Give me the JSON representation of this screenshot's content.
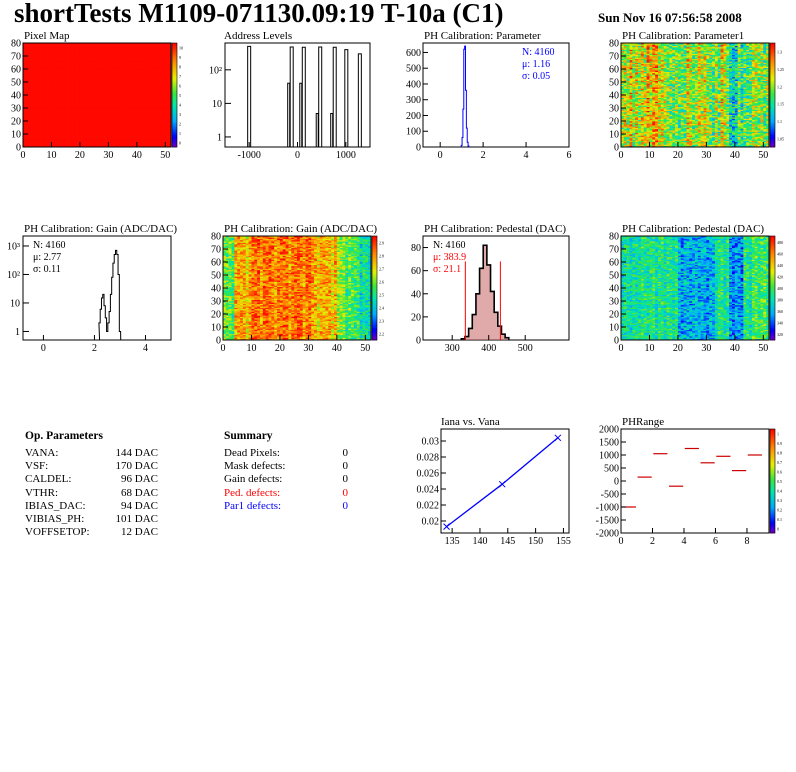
{
  "header": {
    "title": "shortTests M1109-071130.09:19 T-10a (C1)",
    "date": "Sun Nov 16 07:56:58 2008"
  },
  "colors": {
    "stat_text": "#0000ff",
    "pedestal_stat_text": "#ff0000",
    "histogram_line": "#000000",
    "fit_line": "#ff0000",
    "pedestal_fill": "#c86464",
    "iana_fit": "#0000ff",
    "phrange_marks": "#cc0000"
  },
  "panels": {
    "pixel_map": {
      "title": "Pixel Map"
    },
    "address_levels": {
      "title": "Address Levels"
    },
    "ph_param": {
      "title": "PH Calibration: Parameter"
    },
    "ph_param1": {
      "title": "PH Calibration: Parameter1"
    },
    "gain_hist": {
      "title": "PH Calibration: Gain (ADC/DAC)"
    },
    "gain_map": {
      "title": "PH Calibration: Gain (ADC/DAC)"
    },
    "ped_hist": {
      "title": "PH Calibration: Pedestal (DAC)"
    },
    "ped_map": {
      "title": "PH Calibration: Pedestal (DAC)"
    },
    "iana": {
      "title": "Iana vs. Vana"
    },
    "phrange": {
      "title": "PHRange"
    }
  },
  "stats": {
    "ph_param": {
      "n": "N: 4160",
      "mu": "μ: 1.16",
      "sigma": "σ: 0.05"
    },
    "gain": {
      "n": "N: 4160",
      "mu": "μ: 2.77",
      "sigma": "σ: 0.11"
    },
    "ped": {
      "n": "N: 4160",
      "mu": "μ: 383.9",
      "sigma": "σ: 21.1"
    }
  },
  "op_parameters": {
    "title": "Op. Parameters",
    "rows": [
      {
        "name": "VANA:",
        "value": "144 DAC"
      },
      {
        "name": "VSF:",
        "value": "170 DAC"
      },
      {
        "name": "CALDEL:",
        "value": "96 DAC"
      },
      {
        "name": "VTHR:",
        "value": "68 DAC"
      },
      {
        "name": "IBIAS_DAC:",
        "value": "94 DAC"
      },
      {
        "name": "VIBIAS_PH:",
        "value": "101 DAC"
      },
      {
        "name": "VOFFSETOP:",
        "value": "12 DAC"
      }
    ]
  },
  "summary": {
    "title": "Summary",
    "rows": [
      {
        "name": "Dead Pixels:",
        "value": "0",
        "color": "#000000"
      },
      {
        "name": "Mask defects:",
        "value": "0",
        "color": "#000000"
      },
      {
        "name": "Gain defects:",
        "value": "0",
        "color": "#000000"
      },
      {
        "name": "Ped. defects:",
        "value": "0",
        "color": "#ff0000"
      },
      {
        "name": "Par1 defects:",
        "value": "0",
        "color": "#0000ff"
      }
    ]
  },
  "chart_data": [
    {
      "id": "pixel_map",
      "type": "heatmap",
      "title": "Pixel Map",
      "xlim": [
        0,
        52
      ],
      "ylim": [
        0,
        80
      ],
      "xticks": [
        "0",
        "10",
        "20",
        "30",
        "40",
        "50"
      ],
      "yticks": [
        "0",
        "10",
        "20",
        "30",
        "40",
        "50",
        "60",
        "70",
        "80"
      ],
      "uniform_value": 10,
      "colorbar_ticks": [
        "0",
        "1",
        "2",
        "3",
        "4",
        "5",
        "6",
        "7",
        "8",
        "9",
        "10"
      ]
    },
    {
      "id": "address_levels",
      "type": "bar",
      "title": "Address Levels",
      "log_y": true,
      "xlim": [
        -1500,
        1500
      ],
      "xticks": [
        "-1000",
        "0",
        "1000"
      ],
      "yticks": [
        "1",
        "10",
        "10²"
      ],
      "peaks": [
        {
          "x": -1000,
          "y": 500
        },
        {
          "x": -120,
          "y": 480
        },
        {
          "x": 130,
          "y": 470
        },
        {
          "x": 470,
          "y": 480
        },
        {
          "x": 770,
          "y": 470
        },
        {
          "x": 1010,
          "y": 400
        },
        {
          "x": 1290,
          "y": 300
        }
      ],
      "peak_pairs": [
        {
          "x": -120,
          "y": 40
        },
        {
          "x": 130,
          "y": 40
        },
        {
          "x": 470,
          "y": 5
        },
        {
          "x": 770,
          "y": 5
        }
      ]
    },
    {
      "id": "ph_param",
      "type": "bar",
      "title": "PH Calibration: Parameter",
      "xlim": [
        -0.8,
        6
      ],
      "ylim": [
        0,
        660
      ],
      "xticks": [
        "0",
        "2",
        "4",
        "6"
      ],
      "yticks": [
        "0",
        "100",
        "200",
        "300",
        "400",
        "500",
        "600"
      ],
      "x": [
        1.0,
        1.04,
        1.08,
        1.12,
        1.16,
        1.2,
        1.24,
        1.28,
        1.32
      ],
      "values": [
        10,
        60,
        240,
        620,
        640,
        360,
        120,
        30,
        6
      ]
    },
    {
      "id": "ph_param1",
      "type": "heatmap",
      "title": "PH Calibration: Parameter1",
      "xlim": [
        0,
        52
      ],
      "ylim": [
        0,
        80
      ],
      "xticks": [
        "0",
        "10",
        "20",
        "30",
        "40",
        "50"
      ],
      "yticks": [
        "0",
        "10",
        "20",
        "30",
        "40",
        "50",
        "60",
        "70",
        "80"
      ],
      "colorbar_ticks": [
        "1.05",
        "1.1",
        "1.15",
        "1.2",
        "1.25",
        "1.3"
      ]
    },
    {
      "id": "gain_hist",
      "type": "line",
      "title": "PH Calibration: Gain (ADC/DAC)",
      "log_y": true,
      "xlim": [
        -0.8,
        5
      ],
      "xticks": [
        "0",
        "2",
        "4"
      ],
      "yticks": [
        "1",
        "10",
        "10²",
        "10³"
      ],
      "x": [
        2.2,
        2.25,
        2.3,
        2.35,
        2.4,
        2.45,
        2.5,
        2.55,
        2.6,
        2.65,
        2.7,
        2.75,
        2.8,
        2.85,
        2.9,
        2.95,
        3.0
      ],
      "values": [
        2,
        6,
        15,
        20,
        8,
        3,
        1,
        2,
        5,
        20,
        80,
        250,
        500,
        700,
        500,
        100,
        1
      ]
    },
    {
      "id": "gain_map",
      "type": "heatmap",
      "title": "PH Calibration: Gain (ADC/DAC)",
      "xlim": [
        0,
        52
      ],
      "ylim": [
        0,
        80
      ],
      "xticks": [
        "0",
        "10",
        "20",
        "30",
        "40",
        "50"
      ],
      "yticks": [
        "0",
        "10",
        "20",
        "30",
        "40",
        "50",
        "60",
        "70",
        "80"
      ],
      "colorbar_ticks": [
        "2.2",
        "2.3",
        "2.4",
        "2.5",
        "2.6",
        "2.7",
        "2.8",
        "2.9"
      ]
    },
    {
      "id": "ped_hist",
      "type": "bar",
      "title": "PH Calibration: Pedestal (DAC)",
      "xlim": [
        220,
        620
      ],
      "ylim": [
        0,
        90
      ],
      "xticks": [
        "300",
        "400",
        "500"
      ],
      "yticks": [
        "0",
        "20",
        "40",
        "60",
        "80"
      ],
      "x": [
        330,
        340,
        350,
        360,
        370,
        380,
        390,
        400,
        410,
        420,
        430,
        440,
        450
      ],
      "values": [
        1,
        3,
        10,
        22,
        40,
        62,
        82,
        65,
        42,
        24,
        12,
        5,
        2
      ],
      "cut_lines": [
        336,
        432
      ]
    },
    {
      "id": "ped_map",
      "type": "heatmap",
      "title": "PH Calibration: Pedestal (DAC)",
      "xlim": [
        0,
        52
      ],
      "ylim": [
        0,
        80
      ],
      "xticks": [
        "0",
        "10",
        "20",
        "30",
        "40",
        "50"
      ],
      "yticks": [
        "0",
        "10",
        "20",
        "30",
        "40",
        "50",
        "60",
        "70",
        "80"
      ],
      "colorbar_ticks": [
        "320",
        "340",
        "360",
        "380",
        "400",
        "420",
        "440",
        "460",
        "480"
      ]
    },
    {
      "id": "iana",
      "type": "line",
      "title": "Iana vs. Vana",
      "xlim": [
        133,
        156
      ],
      "ylim": [
        0.0185,
        0.0315
      ],
      "xticks": [
        "135",
        "140",
        "145",
        "150",
        "155"
      ],
      "yticks": [
        "0.02",
        "0.022",
        "0.024",
        "0.026",
        "0.028",
        "0.03"
      ],
      "x": [
        134,
        144,
        154
      ],
      "values": [
        0.0193,
        0.0246,
        0.0304
      ]
    },
    {
      "id": "phrange",
      "type": "scatter",
      "title": "PHRange",
      "xlim": [
        0,
        9.4
      ],
      "ylim": [
        -2000,
        2000
      ],
      "xticks": [
        "0",
        "2",
        "4",
        "6",
        "8"
      ],
      "yticks": [
        "-2000",
        "-1500",
        "-1000",
        "-500",
        "0",
        "500",
        "1000",
        "1500",
        "2000"
      ],
      "x": [
        0.5,
        1.5,
        2.5,
        3.5,
        4.5,
        5.5,
        6.5,
        7.5,
        8.5
      ],
      "values": [
        -1000,
        150,
        1050,
        -200,
        1250,
        700,
        950,
        400,
        1000
      ],
      "colorbar_ticks": [
        "0",
        "0.1",
        "0.2",
        "0.3",
        "0.4",
        "0.5",
        "0.6",
        "0.7",
        "0.8",
        "0.9",
        "1"
      ]
    }
  ]
}
